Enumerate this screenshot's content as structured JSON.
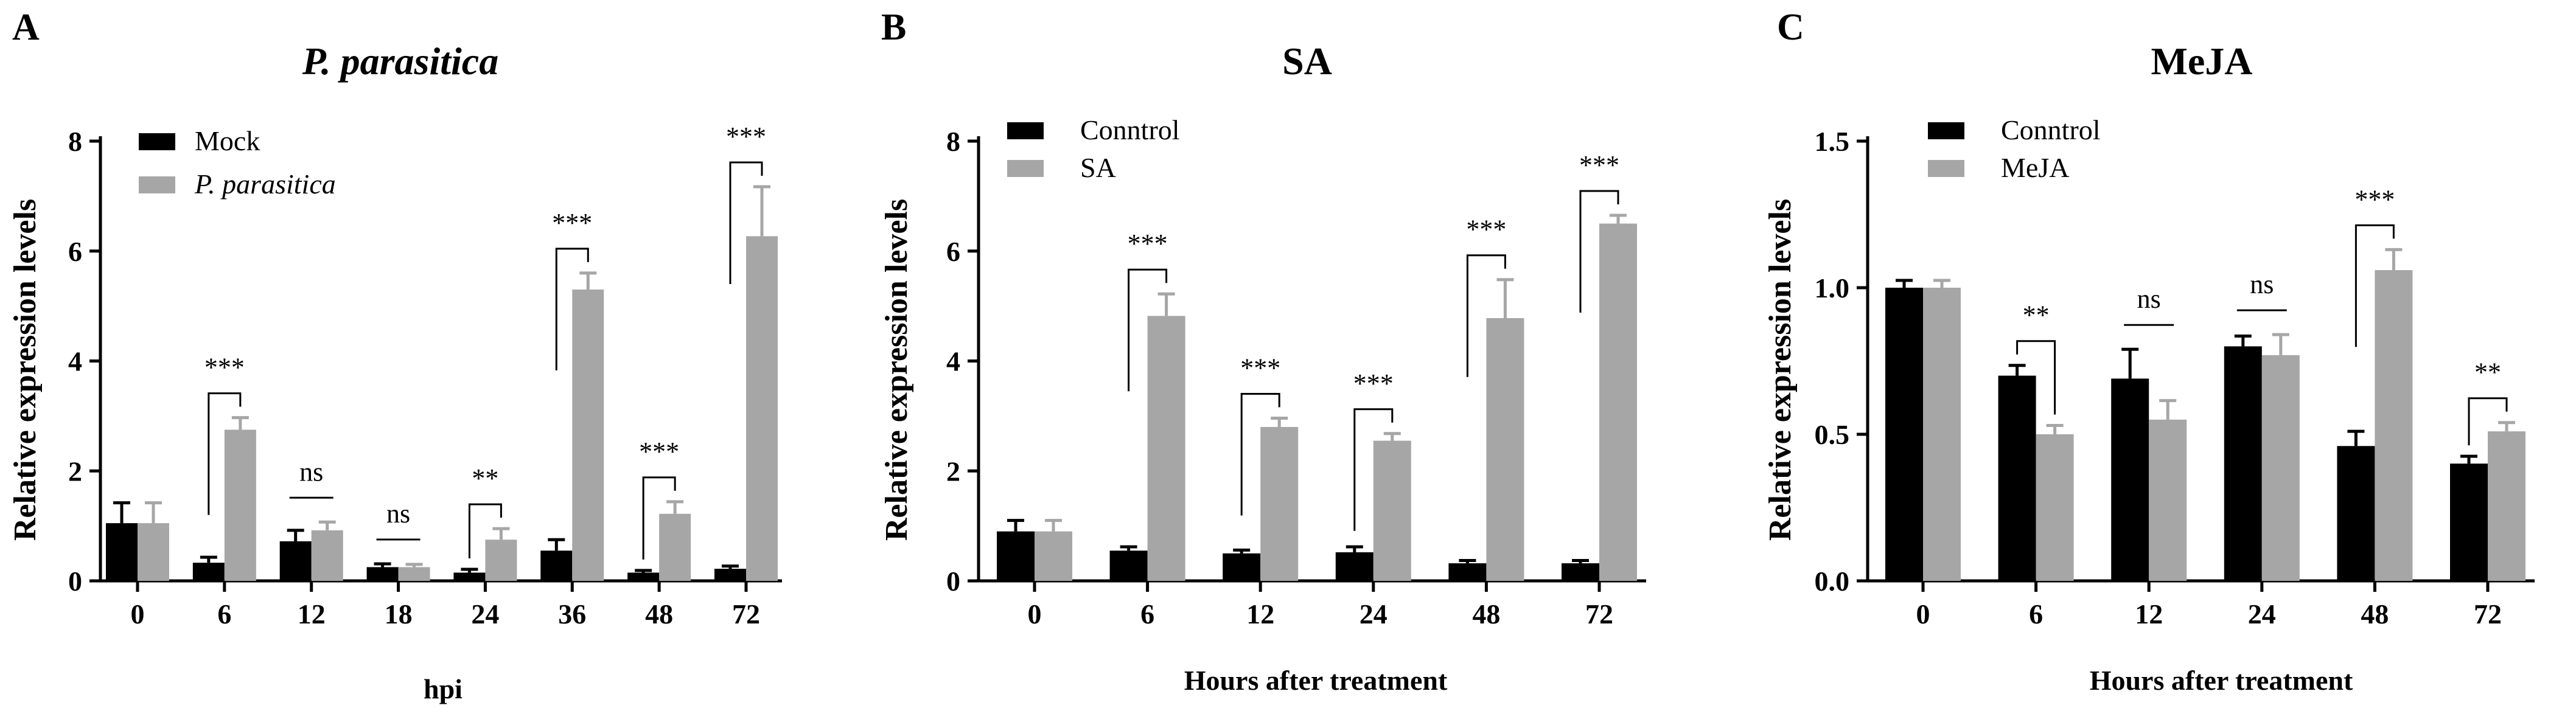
{
  "colors": {
    "series1": "#000000",
    "series2": "#a6a6a6",
    "axis": "#000000"
  },
  "chart_data": [
    {
      "type": "bar",
      "panel": "A",
      "title": "P. parasitica",
      "title_italic": true,
      "xlabel": "hpi",
      "ylabel": "Relative expression levels",
      "ylim": [
        0,
        8
      ],
      "yticks": [
        0,
        2,
        4,
        6,
        8
      ],
      "ytick_labels": [
        "0",
        "2",
        "4",
        "6",
        "8"
      ],
      "categories": [
        "0",
        "6",
        "12",
        "18",
        "24",
        "36",
        "48",
        "72"
      ],
      "series": [
        {
          "name": "Mock",
          "italic": false,
          "values": [
            1.05,
            0.33,
            0.72,
            0.25,
            0.15,
            0.55,
            0.15,
            0.22
          ],
          "errors": [
            0.37,
            0.1,
            0.2,
            0.06,
            0.06,
            0.2,
            0.04,
            0.05
          ]
        },
        {
          "name": "P. parasitica",
          "italic": true,
          "values": [
            1.05,
            2.75,
            0.92,
            0.25,
            0.75,
            5.3,
            1.22,
            6.27
          ],
          "errors": [
            0.37,
            0.22,
            0.15,
            0.05,
            0.2,
            0.3,
            0.22,
            0.9
          ]
        }
      ],
      "significance": [
        "",
        "***",
        "ns",
        "ns",
        "**",
        "***",
        "***",
        "***"
      ],
      "legend": "top-left"
    },
    {
      "type": "bar",
      "panel": "B",
      "title": "SA",
      "title_italic": false,
      "xlabel": "Hours after treatment",
      "ylabel": "Relative expression levels",
      "ylim": [
        0,
        8
      ],
      "yticks": [
        0,
        2,
        4,
        6,
        8
      ],
      "ytick_labels": [
        "0",
        "2",
        "4",
        "6",
        "8"
      ],
      "categories": [
        "0",
        "6",
        "12",
        "24",
        "48",
        "72"
      ],
      "series": [
        {
          "name": "Conntrol",
          "italic": false,
          "values": [
            0.9,
            0.55,
            0.5,
            0.52,
            0.32,
            0.32
          ],
          "errors": [
            0.2,
            0.07,
            0.06,
            0.1,
            0.05,
            0.05
          ]
        },
        {
          "name": "SA",
          "italic": false,
          "values": [
            0.9,
            4.82,
            2.8,
            2.55,
            4.78,
            6.5
          ],
          "errors": [
            0.2,
            0.4,
            0.16,
            0.13,
            0.7,
            0.15
          ]
        }
      ],
      "significance": [
        "",
        "***",
        "***",
        "***",
        "***",
        "***"
      ],
      "legend": "top-left"
    },
    {
      "type": "bar",
      "panel": "C",
      "title": "MeJA",
      "title_italic": false,
      "xlabel": "Hours after treatment",
      "ylabel": "Relative expression levels",
      "ylim": [
        0,
        1.5
      ],
      "yticks": [
        0,
        0.5,
        1.0,
        1.5
      ],
      "ytick_labels": [
        "0.0",
        "0.5",
        "1.0",
        "1.5"
      ],
      "categories": [
        "0",
        "6",
        "12",
        "24",
        "48",
        "72"
      ],
      "series": [
        {
          "name": "Conntrol",
          "italic": false,
          "values": [
            1.0,
            0.7,
            0.69,
            0.8,
            0.46,
            0.4
          ],
          "errors": [
            0.025,
            0.035,
            0.1,
            0.035,
            0.05,
            0.025
          ]
        },
        {
          "name": "MeJA",
          "italic": false,
          "values": [
            1.0,
            0.5,
            0.55,
            0.77,
            1.06,
            0.51
          ],
          "errors": [
            0.025,
            0.03,
            0.065,
            0.07,
            0.07,
            0.03
          ]
        }
      ],
      "significance": [
        "",
        "**",
        "ns",
        "ns",
        "***",
        "**"
      ],
      "legend": "top-left"
    }
  ]
}
